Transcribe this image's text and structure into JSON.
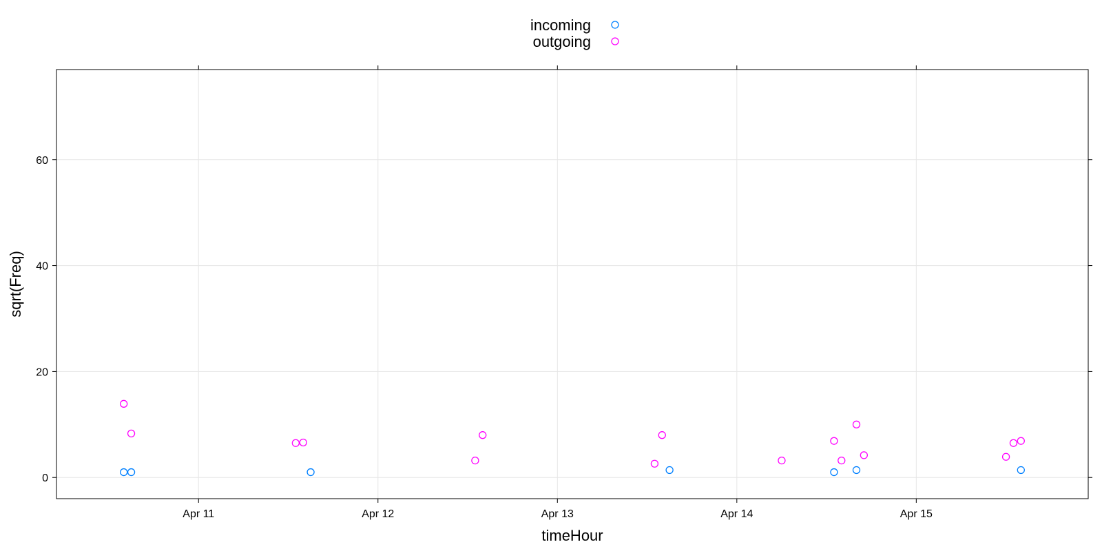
{
  "chart_data": {
    "type": "scatter",
    "xlabel": "timeHour",
    "ylabel": "sqrt(Freq)",
    "x_ticks": [
      "Apr 11",
      "Apr 12",
      "Apr 13",
      "Apr 14",
      "Apr 15"
    ],
    "y_ticks": [
      0,
      20,
      40,
      60
    ],
    "xlim": [
      "2024-04-10T05:00",
      "2024-04-15T23:00"
    ],
    "ylim": [
      -4,
      77
    ],
    "grid": true,
    "legend_position": "top-center",
    "series": [
      {
        "name": "incoming",
        "color": "#0080ff",
        "points": [
          {
            "x": "2024-04-10T14:00",
            "y": 1.0
          },
          {
            "x": "2024-04-10T15:00",
            "y": 1.0
          },
          {
            "x": "2024-04-11T15:00",
            "y": 1.0
          },
          {
            "x": "2024-04-13T15:00",
            "y": 1.4
          },
          {
            "x": "2024-04-14T13:00",
            "y": 1.0
          },
          {
            "x": "2024-04-14T16:00",
            "y": 1.4
          },
          {
            "x": "2024-04-15T14:00",
            "y": 1.4
          }
        ]
      },
      {
        "name": "outgoing",
        "color": "#ff00ff",
        "points": [
          {
            "x": "2024-04-10T14:00",
            "y": 13.9
          },
          {
            "x": "2024-04-10T15:00",
            "y": 8.3
          },
          {
            "x": "2024-04-11T13:00",
            "y": 6.5
          },
          {
            "x": "2024-04-11T14:00",
            "y": 6.6
          },
          {
            "x": "2024-04-12T13:00",
            "y": 3.2
          },
          {
            "x": "2024-04-12T14:00",
            "y": 8.0
          },
          {
            "x": "2024-04-13T13:00",
            "y": 2.6
          },
          {
            "x": "2024-04-13T14:00",
            "y": 8.0
          },
          {
            "x": "2024-04-14T06:00",
            "y": 3.2
          },
          {
            "x": "2024-04-14T13:00",
            "y": 6.9
          },
          {
            "x": "2024-04-14T14:00",
            "y": 3.2
          },
          {
            "x": "2024-04-14T16:00",
            "y": 10.0
          },
          {
            "x": "2024-04-14T17:00",
            "y": 4.2
          },
          {
            "x": "2024-04-15T12:00",
            "y": 3.9
          },
          {
            "x": "2024-04-15T13:00",
            "y": 6.5
          },
          {
            "x": "2024-04-15T14:00",
            "y": 6.9
          }
        ]
      }
    ]
  }
}
